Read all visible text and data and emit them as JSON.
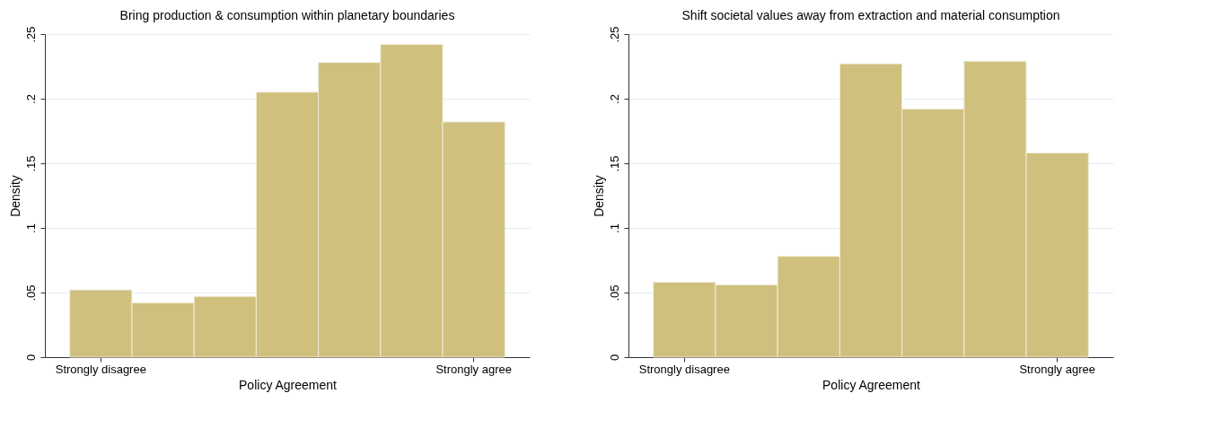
{
  "chart_data": [
    {
      "type": "bar",
      "title": "Bring production & consumption within planetary boundaries",
      "xlabel": "Policy Agreement",
      "ylabel": "Density",
      "categories": [
        "Strongly disagree",
        null,
        null,
        null,
        null,
        null,
        "Strongly agree"
      ],
      "values": [
        0.052,
        0.042,
        0.047,
        0.205,
        0.228,
        0.242,
        0.182
      ],
      "color": "#cfc07e",
      "ylim": [
        0,
        0.25
      ],
      "yticks": [
        0,
        {
          "value": 0.05,
          "label": ".05"
        },
        {
          "value": 0.1,
          "label": ".1"
        },
        {
          "value": 0.15,
          "label": ".15"
        },
        {
          "value": 0.2,
          "label": ".2"
        },
        {
          "value": 0.25,
          "label": ".25"
        }
      ],
      "grid": "y"
    },
    {
      "type": "bar",
      "title": "Shift societal values away from extraction and material consumption",
      "xlabel": "Policy Agreement",
      "ylabel": "Density",
      "categories": [
        "Strongly disagree",
        null,
        null,
        null,
        null,
        null,
        "Strongly agree"
      ],
      "values": [
        0.058,
        0.056,
        0.078,
        0.227,
        0.192,
        0.229,
        0.158
      ],
      "color": "#cfc07e",
      "ylim": [
        0,
        0.25
      ],
      "yticks": [
        0,
        {
          "value": 0.05,
          "label": ".05"
        },
        {
          "value": 0.1,
          "label": ".1"
        },
        {
          "value": 0.15,
          "label": ".15"
        },
        {
          "value": 0.2,
          "label": ".2"
        },
        {
          "value": 0.25,
          "label": ".25"
        }
      ],
      "grid": "y"
    }
  ]
}
